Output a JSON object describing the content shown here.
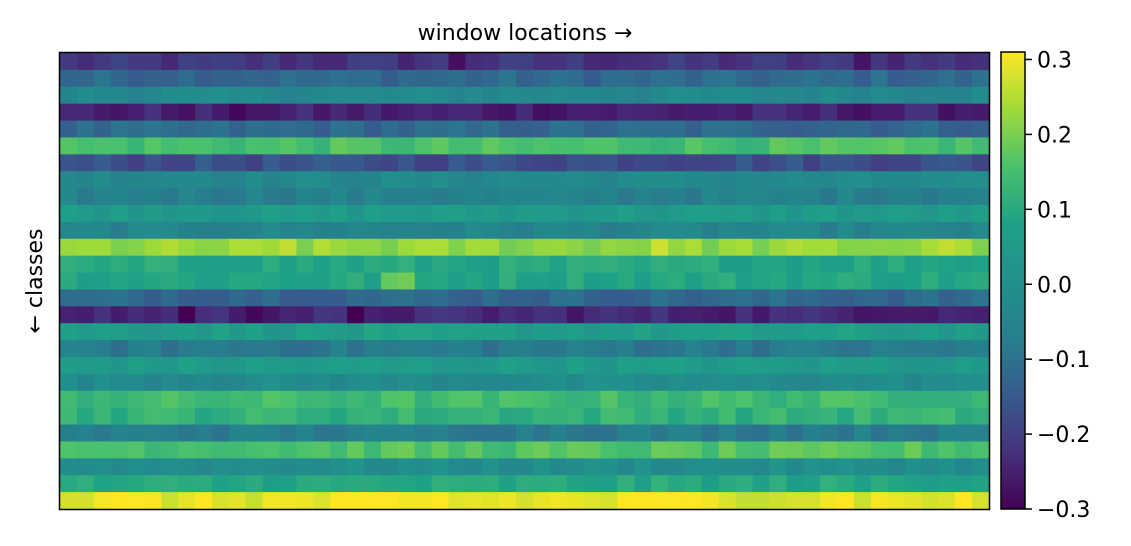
{
  "chart_data": {
    "type": "heatmap",
    "title": "window locations →",
    "xlabel": "",
    "ylabel": "← classes",
    "colormap": "viridis",
    "vmin": -0.3,
    "vmax": 0.31,
    "colorbar_ticks": [
      0.3,
      0.2,
      0.1,
      0.0,
      -0.1,
      -0.2,
      -0.3
    ],
    "colorbar_tick_labels": [
      "0.3",
      "0.2",
      "0.1",
      "0.0",
      "−0.1",
      "−0.2",
      "−0.3"
    ],
    "x_ticks_shown": false,
    "y_ticks_shown": false,
    "n_rows": 27,
    "n_cols": 55,
    "row_means": [
      -0.22,
      -0.12,
      -0.03,
      -0.25,
      -0.12,
      0.15,
      -0.17,
      -0.03,
      -0.06,
      0.05,
      -0.05,
      0.22,
      0.09,
      0.09,
      -0.12,
      -0.24,
      0.06,
      -0.08,
      0.05,
      -0.02,
      0.14,
      0.12,
      -0.07,
      0.16,
      -0.01,
      0.09,
      0.29
    ],
    "highlight_cells": [
      {
        "row": 11,
        "col": 13,
        "value": 0.26
      },
      {
        "row": 11,
        "col": 35,
        "value": 0.27
      },
      {
        "row": 11,
        "col": 52,
        "value": 0.26
      },
      {
        "row": 13,
        "col": 19,
        "value": 0.18
      },
      {
        "row": 13,
        "col": 20,
        "value": 0.19
      },
      {
        "row": 15,
        "col": 7,
        "value": -0.3
      },
      {
        "row": 15,
        "col": 17,
        "value": -0.3
      },
      {
        "row": 15,
        "col": 11,
        "value": -0.29
      },
      {
        "row": 26,
        "col": 3,
        "value": 0.31
      },
      {
        "row": 26,
        "col": 22,
        "value": 0.31
      },
      {
        "row": 26,
        "col": 34,
        "value": 0.31
      },
      {
        "row": 26,
        "col": 46,
        "value": 0.31
      },
      {
        "row": 3,
        "col": 10,
        "value": -0.29
      },
      {
        "row": 0,
        "col": 23,
        "value": -0.28
      },
      {
        "row": 0,
        "col": 47,
        "value": -0.27
      }
    ],
    "variation": 0.03
  }
}
